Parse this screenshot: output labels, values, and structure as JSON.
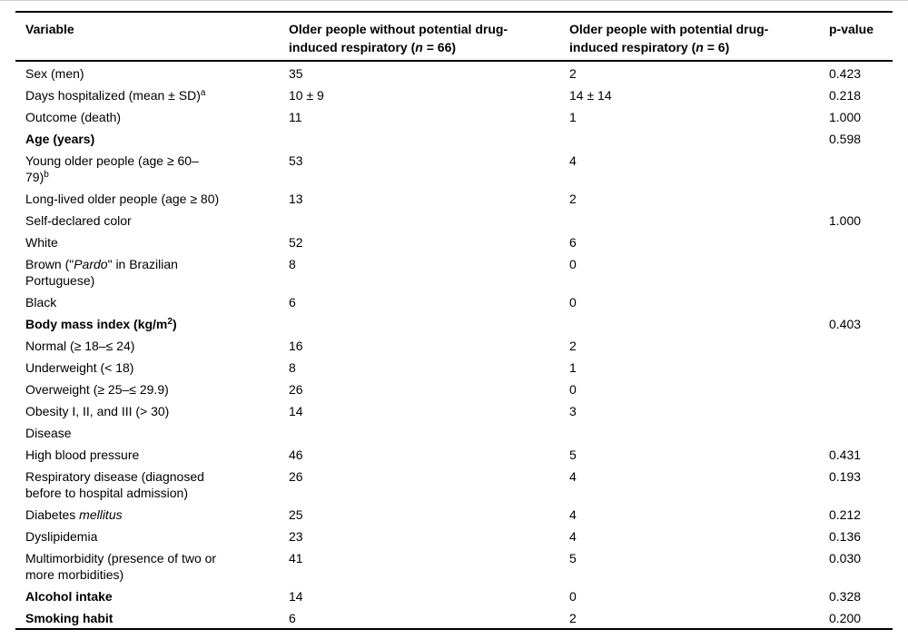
{
  "page": {
    "background_color": "#ffffff",
    "text_color": "#000000",
    "rule_color": "#000000",
    "top_hairline_color": "#cfcfcf"
  },
  "table": {
    "headers": [
      {
        "parts": [
          {
            "t": "Variable"
          }
        ]
      },
      {
        "parts": [
          {
            "t": "Older people without potential drug-"
          },
          {
            "br": true
          },
          {
            "t": "induced respiratory ("
          },
          {
            "t": "n",
            "i": true
          },
          {
            "t": " = 66)"
          }
        ]
      },
      {
        "parts": [
          {
            "t": "Older people with potential drug-"
          },
          {
            "br": true
          },
          {
            "t": "induced respiratory ("
          },
          {
            "t": "n",
            "i": true
          },
          {
            "t": " = 6)"
          }
        ]
      },
      {
        "parts": [
          {
            "t": "p-value"
          }
        ]
      }
    ],
    "rows": [
      {
        "label": [
          {
            "t": "Sex (men)"
          }
        ],
        "without": "35",
        "with": "2",
        "p": "0.423"
      },
      {
        "label": [
          {
            "t": "Days hospitalized (mean ± SD)"
          },
          {
            "t": "a",
            "sup": true
          }
        ],
        "without": "10 ± 9",
        "with": "14 ± 14",
        "p": "0.218"
      },
      {
        "label": [
          {
            "t": "Outcome (death)"
          }
        ],
        "without": "11",
        "with": "1",
        "p": "1.000"
      },
      {
        "bold": true,
        "label": [
          {
            "t": "Age (years)"
          }
        ],
        "without": "",
        "with": "",
        "p": "0.598"
      },
      {
        "label": [
          {
            "t": "Young older people (age ≥ 60–"
          },
          {
            "br": true
          },
          {
            "t": "79)"
          },
          {
            "t": "b",
            "sup": true
          }
        ],
        "without": "53",
        "with": "4",
        "p": ""
      },
      {
        "label": [
          {
            "t": "Long-lived older people (age ≥ 80)"
          }
        ],
        "without": "13",
        "with": "2",
        "p": ""
      },
      {
        "label": [
          {
            "t": "Self-declared color"
          }
        ],
        "without": "",
        "with": "",
        "p": "1.000"
      },
      {
        "label": [
          {
            "t": "White"
          }
        ],
        "without": "52",
        "with": "6",
        "p": ""
      },
      {
        "label": [
          {
            "t": "Brown (\""
          },
          {
            "t": "Pardo",
            "i": true
          },
          {
            "t": "\" in Brazilian"
          },
          {
            "br": true
          },
          {
            "t": "Portuguese)"
          }
        ],
        "without": "8",
        "with": "0",
        "p": ""
      },
      {
        "label": [
          {
            "t": "Black"
          }
        ],
        "without": "6",
        "with": "0",
        "p": ""
      },
      {
        "bold": true,
        "label": [
          {
            "t": "Body mass index (kg/m"
          },
          {
            "t": "2",
            "sup": true
          },
          {
            "t": ")"
          }
        ],
        "without": "",
        "with": "",
        "p": "0.403"
      },
      {
        "label": [
          {
            "t": "Normal (≥ 18–≤ 24)"
          }
        ],
        "without": "16",
        "with": "2",
        "p": ""
      },
      {
        "label": [
          {
            "t": "Underweight (< 18)"
          }
        ],
        "without": "8",
        "with": "1",
        "p": ""
      },
      {
        "label": [
          {
            "t": "Overweight (≥ 25–≤ 29.9)"
          }
        ],
        "without": "26",
        "with": "0",
        "p": ""
      },
      {
        "label": [
          {
            "t": "Obesity I, II, and III (> 30)"
          }
        ],
        "without": "14",
        "with": "3",
        "p": ""
      },
      {
        "label": [
          {
            "t": "Disease"
          }
        ],
        "without": "",
        "with": "",
        "p": ""
      },
      {
        "label": [
          {
            "t": "High blood pressure"
          }
        ],
        "without": "46",
        "with": "5",
        "p": "0.431"
      },
      {
        "label": [
          {
            "t": "Respiratory disease (diagnosed"
          },
          {
            "br": true
          },
          {
            "t": "before to hospital admission)"
          }
        ],
        "without": "26",
        "with": "4",
        "p": "0.193"
      },
      {
        "label": [
          {
            "t": "Diabetes "
          },
          {
            "t": "mellitus",
            "i": true
          }
        ],
        "without": "25",
        "with": "4",
        "p": "0.212"
      },
      {
        "label": [
          {
            "t": "Dyslipidemia"
          }
        ],
        "without": "23",
        "with": "4",
        "p": "0.136"
      },
      {
        "label": [
          {
            "t": "Multimorbidity (presence of two or"
          },
          {
            "br": true
          },
          {
            "t": "more morbidities)"
          }
        ],
        "without": "41",
        "with": "5",
        "p": "0.030"
      },
      {
        "bold": true,
        "label": [
          {
            "t": "Alcohol intake"
          }
        ],
        "without": "14",
        "with": "0",
        "p": "0.328"
      },
      {
        "bold": true,
        "label": [
          {
            "t": "Smoking habit"
          }
        ],
        "without": "6",
        "with": "2",
        "p": "0.200"
      }
    ]
  }
}
